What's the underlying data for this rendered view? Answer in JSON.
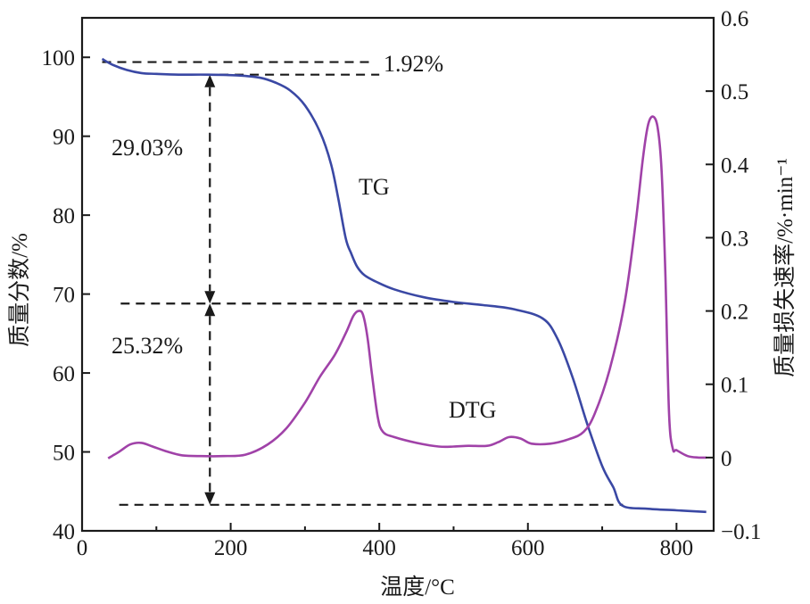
{
  "chart_data": {
    "type": "line",
    "xlabel": "温度/°C",
    "ylabel_left": "质量分数/%",
    "ylabel_right": "质量损失速率/%·min⁻¹",
    "xlim": [
      0,
      850
    ],
    "ylim_left": [
      40,
      105
    ],
    "ylim_right": [
      -0.1,
      0.6
    ],
    "x_ticks": [
      0,
      200,
      400,
      600,
      800
    ],
    "y_left_ticks": [
      40,
      50,
      60,
      70,
      80,
      90,
      100
    ],
    "y_right_ticks": [
      -0.1,
      0,
      0.1,
      0.2,
      0.3,
      0.4,
      0.5,
      0.6
    ],
    "y_right_tick_labels": [
      "−0.1",
      "0",
      "0.1",
      "0.2",
      "0.3",
      "0.4",
      "0.5",
      "0.6"
    ],
    "grid": false,
    "series": [
      {
        "name": "TG",
        "axis": "left",
        "color": "#3a48a4",
        "x": [
          27,
          40,
          60,
          80,
          100,
          130,
          170,
          210,
          240,
          260,
          280,
          300,
          320,
          335,
          345,
          355,
          362,
          370,
          380,
          395,
          420,
          460,
          500,
          540,
          580,
          620,
          640,
          660,
          680,
          700,
          715,
          727,
          760,
          800,
          840
        ],
        "y": [
          99.8,
          99.1,
          98.4,
          98.0,
          97.9,
          97.8,
          97.8,
          97.7,
          97.4,
          96.8,
          95.8,
          93.9,
          90.6,
          86.5,
          82.0,
          77.0,
          75.2,
          73.5,
          72.4,
          71.6,
          70.6,
          69.6,
          69.0,
          68.6,
          68.1,
          66.9,
          64.3,
          59.5,
          53.5,
          48.2,
          45.5,
          43.2,
          42.8,
          42.6,
          42.4
        ]
      },
      {
        "name": "DTG",
        "axis": "right",
        "color": "#a042a8",
        "x": [
          35,
          50,
          65,
          80,
          95,
          115,
          135,
          160,
          190,
          220,
          250,
          275,
          300,
          320,
          340,
          355,
          365,
          372,
          378,
          384,
          390,
          398,
          405,
          420,
          450,
          480,
          500,
          520,
          545,
          560,
          575,
          590,
          605,
          630,
          655,
          675,
          690,
          710,
          730,
          745,
          755,
          762,
          769,
          775,
          780,
          785,
          790,
          795,
          800,
          815,
          830,
          840
        ],
        "y": [
          -0.001,
          0.008,
          0.018,
          0.02,
          0.015,
          0.008,
          0.003,
          0.002,
          0.002,
          0.004,
          0.018,
          0.04,
          0.075,
          0.11,
          0.14,
          0.17,
          0.193,
          0.2,
          0.195,
          0.165,
          0.115,
          0.055,
          0.035,
          0.028,
          0.02,
          0.015,
          0.015,
          0.016,
          0.016,
          0.021,
          0.028,
          0.026,
          0.019,
          0.019,
          0.025,
          0.035,
          0.06,
          0.12,
          0.21,
          0.32,
          0.41,
          0.455,
          0.465,
          0.448,
          0.39,
          0.25,
          0.06,
          0.012,
          0.01,
          0.002,
          0.0,
          0.0
        ]
      }
    ],
    "annotations": [
      {
        "text": "1.92%"
      },
      {
        "text": "29.03%"
      },
      {
        "text": "25.32%"
      },
      {
        "text": "TG"
      },
      {
        "text": "DTG"
      }
    ],
    "markers": {
      "tg_plateau_start_y": 97.8,
      "tg_start_y": 99.4,
      "tg_mid_plateau_y": 68.8,
      "tg_final_y": 43.3,
      "arrow_x": 172
    }
  }
}
